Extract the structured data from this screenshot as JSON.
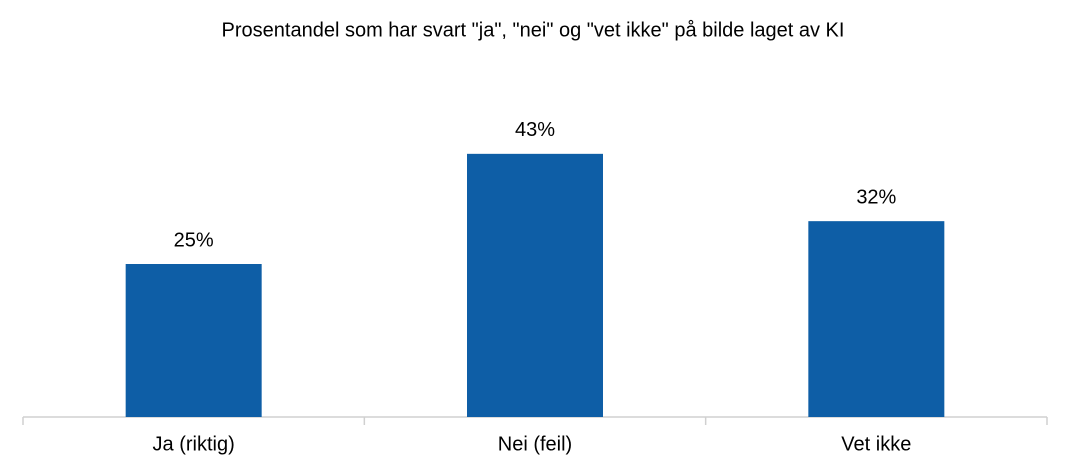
{
  "chart_data": {
    "type": "bar",
    "title": "Prosentandel som har svart \"ja\", \"nei\" og \"vet ikke\" på bilde laget av KI",
    "categories": [
      "Ja (riktig)",
      "Nei (feil)",
      "Vet ikke"
    ],
    "values": [
      25,
      43,
      32
    ],
    "value_labels": [
      "25%",
      "43%",
      "32%"
    ],
    "color": "#0e5ea6"
  }
}
